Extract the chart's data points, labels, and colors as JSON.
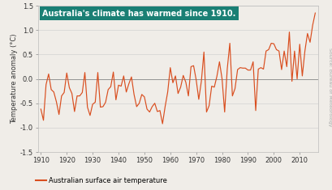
{
  "title": "Australia's climate has warmed since 1910.",
  "ylabel": "Temperature anomaly (°C)",
  "source_text": "Source: Bureau of Meteorology",
  "legend_label": "Australian surface air temperature",
  "line_color": "#d94e1f",
  "title_box_color": "#1a7f74",
  "title_text_color": "#ffffff",
  "background_color": "#f0ede8",
  "ylim": [
    -1.5,
    1.5
  ],
  "xlim": [
    1909,
    2017
  ],
  "yticks": [
    -1.5,
    -1.0,
    -0.5,
    0.0,
    0.5,
    1.0,
    1.5
  ],
  "ytick_labels": [
    "-1.5",
    "-1.0",
    "-0.5",
    "0.0",
    "0.5",
    "1.0",
    "1.5"
  ],
  "xticks": [
    1910,
    1920,
    1930,
    1940,
    1950,
    1960,
    1970,
    1980,
    1990,
    2000,
    2010
  ],
  "years": [
    1910,
    1911,
    1912,
    1913,
    1914,
    1915,
    1916,
    1917,
    1918,
    1919,
    1920,
    1921,
    1922,
    1923,
    1924,
    1925,
    1926,
    1927,
    1928,
    1929,
    1930,
    1931,
    1932,
    1933,
    1934,
    1935,
    1936,
    1937,
    1938,
    1939,
    1940,
    1941,
    1942,
    1943,
    1944,
    1945,
    1946,
    1947,
    1948,
    1949,
    1950,
    1951,
    1952,
    1953,
    1954,
    1955,
    1956,
    1957,
    1958,
    1959,
    1960,
    1961,
    1962,
    1963,
    1964,
    1965,
    1966,
    1967,
    1968,
    1969,
    1970,
    1971,
    1972,
    1973,
    1974,
    1975,
    1976,
    1977,
    1978,
    1979,
    1980,
    1981,
    1982,
    1983,
    1984,
    1985,
    1986,
    1987,
    1988,
    1989,
    1990,
    1991,
    1992,
    1993,
    1994,
    1995,
    1996,
    1997,
    1998,
    1999,
    2000,
    2001,
    2002,
    2003,
    2004,
    2005,
    2006,
    2007,
    2008,
    2009,
    2010,
    2011,
    2012,
    2013,
    2014,
    2015,
    2016
  ],
  "anomalies": [
    -0.62,
    -0.85,
    -0.12,
    0.1,
    -0.22,
    -0.27,
    -0.47,
    -0.73,
    -0.35,
    -0.28,
    0.12,
    -0.18,
    -0.3,
    -0.67,
    -0.35,
    -0.35,
    -0.28,
    0.13,
    -0.58,
    -0.75,
    -0.52,
    -0.48,
    0.13,
    -0.58,
    -0.57,
    -0.48,
    -0.22,
    -0.16,
    0.14,
    -0.43,
    -0.13,
    -0.15,
    0.06,
    -0.27,
    -0.1,
    0.04,
    -0.32,
    -0.57,
    -0.5,
    -0.32,
    -0.37,
    -0.62,
    -0.68,
    -0.57,
    -0.5,
    -0.67,
    -0.65,
    -0.92,
    -0.57,
    -0.27,
    0.23,
    -0.08,
    0.06,
    -0.3,
    -0.17,
    0.07,
    -0.07,
    -0.35,
    0.25,
    0.27,
    -0.02,
    -0.42,
    -0.05,
    0.55,
    -0.68,
    -0.55,
    -0.15,
    -0.17,
    0.05,
    0.35,
    0.0,
    -0.68,
    0.2,
    0.73,
    -0.35,
    -0.2,
    0.19,
    0.23,
    0.22,
    0.22,
    0.18,
    0.18,
    0.35,
    -0.65,
    0.2,
    0.23,
    0.2,
    0.57,
    0.6,
    0.73,
    0.72,
    0.6,
    0.57,
    0.19,
    0.57,
    0.25,
    0.96,
    -0.05,
    0.57,
    0.0,
    0.71,
    0.06,
    0.57,
    0.93,
    0.75,
    1.1,
    1.35
  ]
}
